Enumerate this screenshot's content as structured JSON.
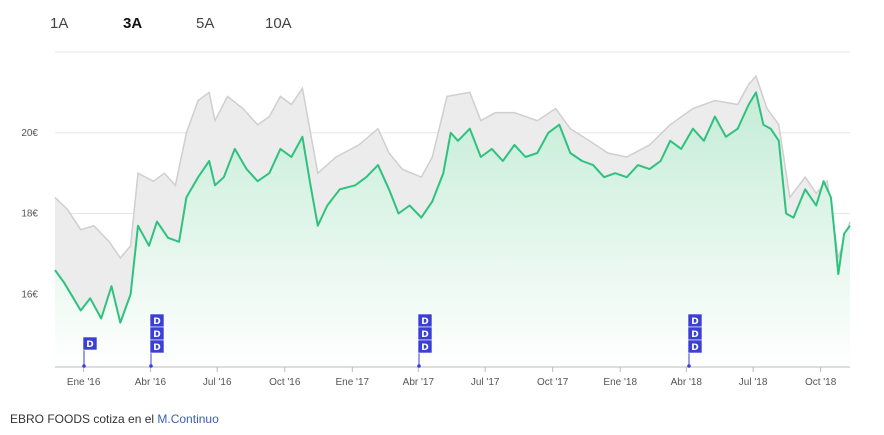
{
  "tabs": [
    {
      "label": "1A",
      "active": false
    },
    {
      "label": "3A",
      "active": true
    },
    {
      "label": "5A",
      "active": false
    },
    {
      "label": "10A",
      "active": false
    }
  ],
  "footer": {
    "prefix": "EBRO FOODS cotiza en el ",
    "market_link": "M.Continuo"
  },
  "colors": {
    "price_line": "#2ec27e",
    "area_top": "#c4ecd6",
    "area_bottom": "#ffffff",
    "compare_line": "#cfcfcf",
    "compare_fill": "#ececec",
    "dividend_flag": "#3b3fd6",
    "grid": "#e6e6e6"
  },
  "chart_data": {
    "type": "area",
    "title": "",
    "xlabel": "",
    "ylabel": "",
    "x_ticks": [
      "Ene '16",
      "Abr '16",
      "Jul '16",
      "Oct '16",
      "Ene '17",
      "Abr '17",
      "Jul '17",
      "Oct '17",
      "Ene '18",
      "Abr '18",
      "Jul '18",
      "Oct '18"
    ],
    "y_ticks": [
      "16€",
      "18€",
      "20€"
    ],
    "ylim": [
      14.2,
      22.0
    ],
    "xlim": [
      "2015-11-23",
      "2018-11-10"
    ],
    "grid": "horizontal",
    "series": [
      {
        "role": "price",
        "points": [
          [
            "2015-11-23",
            16.6
          ],
          [
            "2015-12-05",
            16.3
          ],
          [
            "2015-12-15",
            16.0
          ],
          [
            "2015-12-28",
            15.6
          ],
          [
            "2016-01-10",
            15.9
          ],
          [
            "2016-01-25",
            15.4
          ],
          [
            "2016-02-08",
            16.2
          ],
          [
            "2016-02-20",
            15.3
          ],
          [
            "2016-03-05",
            16.0
          ],
          [
            "2016-03-15",
            17.7
          ],
          [
            "2016-03-30",
            17.2
          ],
          [
            "2016-04-10",
            17.8
          ],
          [
            "2016-04-25",
            17.4
          ],
          [
            "2016-05-10",
            17.3
          ],
          [
            "2016-05-20",
            18.4
          ],
          [
            "2016-06-05",
            18.9
          ],
          [
            "2016-06-20",
            19.3
          ],
          [
            "2016-06-28",
            18.7
          ],
          [
            "2016-07-10",
            18.9
          ],
          [
            "2016-07-25",
            19.6
          ],
          [
            "2016-08-10",
            19.1
          ],
          [
            "2016-08-25",
            18.8
          ],
          [
            "2016-09-10",
            19.0
          ],
          [
            "2016-09-25",
            19.6
          ],
          [
            "2016-10-10",
            19.4
          ],
          [
            "2016-10-25",
            19.9
          ],
          [
            "2016-11-05",
            18.7
          ],
          [
            "2016-11-15",
            17.7
          ],
          [
            "2016-11-28",
            18.2
          ],
          [
            "2016-12-15",
            18.6
          ],
          [
            "2017-01-05",
            18.7
          ],
          [
            "2017-01-20",
            18.9
          ],
          [
            "2017-02-05",
            19.2
          ],
          [
            "2017-02-20",
            18.6
          ],
          [
            "2017-03-05",
            18.0
          ],
          [
            "2017-03-20",
            18.2
          ],
          [
            "2017-04-05",
            17.9
          ],
          [
            "2017-04-20",
            18.3
          ],
          [
            "2017-05-05",
            19.0
          ],
          [
            "2017-05-15",
            20.0
          ],
          [
            "2017-05-25",
            19.8
          ],
          [
            "2017-06-10",
            20.1
          ],
          [
            "2017-06-25",
            19.4
          ],
          [
            "2017-07-10",
            19.6
          ],
          [
            "2017-07-25",
            19.3
          ],
          [
            "2017-08-10",
            19.7
          ],
          [
            "2017-08-25",
            19.4
          ],
          [
            "2017-09-10",
            19.5
          ],
          [
            "2017-09-25",
            20.0
          ],
          [
            "2017-10-10",
            20.2
          ],
          [
            "2017-10-25",
            19.5
          ],
          [
            "2017-11-10",
            19.3
          ],
          [
            "2017-11-25",
            19.2
          ],
          [
            "2017-12-10",
            18.9
          ],
          [
            "2017-12-25",
            19.0
          ],
          [
            "2018-01-10",
            18.9
          ],
          [
            "2018-01-25",
            19.2
          ],
          [
            "2018-02-10",
            19.1
          ],
          [
            "2018-02-25",
            19.3
          ],
          [
            "2018-03-10",
            19.8
          ],
          [
            "2018-03-25",
            19.6
          ],
          [
            "2018-04-10",
            20.1
          ],
          [
            "2018-04-25",
            19.8
          ],
          [
            "2018-05-10",
            20.4
          ],
          [
            "2018-05-25",
            19.9
          ],
          [
            "2018-06-10",
            20.1
          ],
          [
            "2018-06-25",
            20.7
          ],
          [
            "2018-07-05",
            21.0
          ],
          [
            "2018-07-15",
            20.2
          ],
          [
            "2018-07-25",
            20.1
          ],
          [
            "2018-08-05",
            19.8
          ],
          [
            "2018-08-15",
            18.0
          ],
          [
            "2018-08-25",
            17.9
          ],
          [
            "2018-09-10",
            18.6
          ],
          [
            "2018-09-25",
            18.2
          ],
          [
            "2018-10-05",
            18.8
          ],
          [
            "2018-10-15",
            18.4
          ],
          [
            "2018-10-20",
            17.5
          ],
          [
            "2018-10-25",
            16.5
          ],
          [
            "2018-11-02",
            17.5
          ],
          [
            "2018-11-10",
            17.7
          ]
        ]
      },
      {
        "role": "comparison",
        "points": [
          [
            "2015-11-23",
            18.4
          ],
          [
            "2015-12-10",
            18.1
          ],
          [
            "2015-12-28",
            17.6
          ],
          [
            "2016-01-15",
            17.7
          ],
          [
            "2016-02-05",
            17.3
          ],
          [
            "2016-02-20",
            16.9
          ],
          [
            "2016-03-05",
            17.2
          ],
          [
            "2016-03-15",
            19.0
          ],
          [
            "2016-04-05",
            18.8
          ],
          [
            "2016-04-20",
            19.0
          ],
          [
            "2016-05-05",
            18.7
          ],
          [
            "2016-05-20",
            20.0
          ],
          [
            "2016-06-05",
            20.8
          ],
          [
            "2016-06-20",
            21.0
          ],
          [
            "2016-06-28",
            20.3
          ],
          [
            "2016-07-15",
            20.9
          ],
          [
            "2016-08-05",
            20.6
          ],
          [
            "2016-08-25",
            20.2
          ],
          [
            "2016-09-10",
            20.4
          ],
          [
            "2016-09-25",
            20.9
          ],
          [
            "2016-10-10",
            20.7
          ],
          [
            "2016-10-25",
            21.1
          ],
          [
            "2016-11-05",
            20.0
          ],
          [
            "2016-11-15",
            19.0
          ],
          [
            "2016-12-10",
            19.4
          ],
          [
            "2017-01-10",
            19.7
          ],
          [
            "2017-02-05",
            20.1
          ],
          [
            "2017-02-20",
            19.5
          ],
          [
            "2017-03-10",
            19.1
          ],
          [
            "2017-04-05",
            18.9
          ],
          [
            "2017-04-20",
            19.4
          ],
          [
            "2017-05-10",
            20.9
          ],
          [
            "2017-06-10",
            21.0
          ],
          [
            "2017-06-25",
            20.3
          ],
          [
            "2017-07-15",
            20.5
          ],
          [
            "2017-08-10",
            20.5
          ],
          [
            "2017-09-10",
            20.3
          ],
          [
            "2017-10-05",
            20.6
          ],
          [
            "2017-10-25",
            20.1
          ],
          [
            "2017-11-20",
            19.8
          ],
          [
            "2017-12-15",
            19.5
          ],
          [
            "2018-01-10",
            19.4
          ],
          [
            "2018-02-10",
            19.7
          ],
          [
            "2018-03-10",
            20.2
          ],
          [
            "2018-04-10",
            20.6
          ],
          [
            "2018-05-10",
            20.8
          ],
          [
            "2018-06-10",
            20.7
          ],
          [
            "2018-06-25",
            21.2
          ],
          [
            "2018-07-05",
            21.4
          ],
          [
            "2018-07-20",
            20.6
          ],
          [
            "2018-08-05",
            20.2
          ],
          [
            "2018-08-20",
            18.4
          ],
          [
            "2018-09-10",
            18.9
          ],
          [
            "2018-09-25",
            18.5
          ],
          [
            "2018-10-10",
            18.8
          ],
          [
            "2018-10-25",
            16.9
          ],
          [
            "2018-11-10",
            17.8
          ]
        ]
      }
    ],
    "dividend_flags": [
      {
        "date": "2016-01-01",
        "labels": [
          "D"
        ]
      },
      {
        "date": "2016-04-02",
        "labels": [
          "D",
          "D",
          "D"
        ]
      },
      {
        "date": "2017-04-02",
        "labels": [
          "D",
          "D",
          "D"
        ]
      },
      {
        "date": "2018-04-04",
        "labels": [
          "D",
          "D",
          "D"
        ]
      }
    ]
  }
}
